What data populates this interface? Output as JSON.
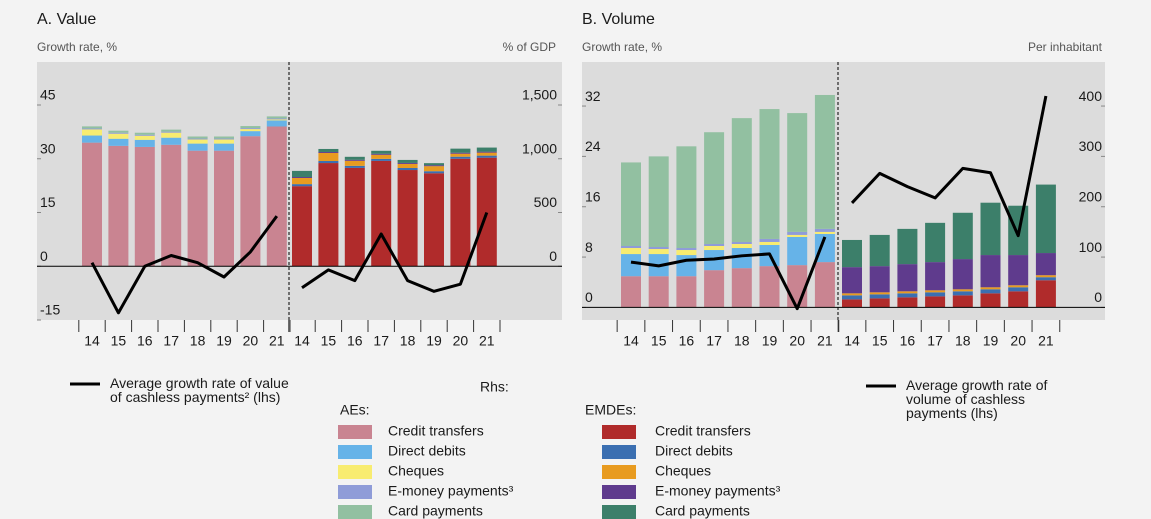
{
  "chart_data": [
    {
      "type": "bar",
      "title": "A. Value",
      "ylabel": "Growth rate, %",
      "y2label": "% of GDP",
      "categories": [
        "14",
        "15",
        "16",
        "17",
        "18",
        "19",
        "20",
        "21"
      ],
      "ylim": [
        -15,
        57
      ],
      "yticks": [
        -15,
        0,
        15,
        30,
        45
      ],
      "y2lim": [
        -500,
        1900
      ],
      "y2ticks": [
        0,
        500,
        {
          "value": 1000,
          "label": "1,000"
        },
        {
          "value": 1500,
          "label": "1,500"
        }
      ],
      "line_name": "Average growth rate of value of cashless payments² (lhs)",
      "line_color": "#000000",
      "groups": [
        {
          "series": [
            {
              "values": [
                1150,
                1120,
                1110,
                1130,
                1075,
                1075,
                1210,
                1300
              ],
              "axis": "y2"
            },
            {
              "values": [
                66,
                66,
                66,
                66,
                66,
                66,
                47,
                57
              ],
              "axis": "y2"
            },
            {
              "values": [
                57,
                47,
                38,
                47,
                38,
                38,
                19,
                9
              ],
              "axis": "y2"
            },
            {
              "values": [
                9,
                9,
                9,
                9,
                9,
                9,
                9,
                9
              ],
              "axis": "y2"
            },
            {
              "values": [
                19,
                19,
                19,
                19,
                19,
                19,
                19,
                19
              ],
              "axis": "y2"
            }
          ],
          "line_values": [
            1,
            -13,
            0,
            3,
            1,
            -3,
            4,
            14
          ]
        },
        {
          "series": [
            {
              "values": [
                745,
                960,
                915,
                980,
                895,
                865,
                1000,
                1010
              ],
              "axis": "y2"
            },
            {
              "values": [
                19,
                19,
                19,
                19,
                19,
                19,
                19,
                19
              ],
              "axis": "y2"
            },
            {
              "values": [
                57,
                75,
                47,
                38,
                38,
                47,
                28,
                28
              ],
              "axis": "y2"
            },
            {
              "values": [
                9,
                9,
                9,
                9,
                9,
                9,
                9,
                9
              ],
              "axis": "y2"
            },
            {
              "values": [
                57,
                28,
                28,
                28,
                28,
                19,
                38,
                38
              ],
              "axis": "y2"
            }
          ],
          "line_values": [
            -6,
            -1,
            -4,
            9,
            -4,
            -7,
            -5,
            15
          ]
        }
      ]
    },
    {
      "type": "bar",
      "title": "B. Volume",
      "ylabel": "Growth rate, %",
      "y2label": "Per inhabitant",
      "categories": [
        "14",
        "15",
        "16",
        "17",
        "18",
        "19",
        "20",
        "21"
      ],
      "ylim": [
        -2,
        39
      ],
      "yticks": [
        0,
        8,
        16,
        24,
        32
      ],
      "y2lim": [
        -25,
        487.5
      ],
      "y2ticks": [
        0,
        100,
        200,
        300,
        400
      ],
      "line_name": "Average growth rate of volume of cashless payments (lhs)",
      "line_color": "#000000",
      "groups": [
        {
          "series": [
            {
              "values": [
                62,
                62,
                62,
                74,
                78,
                82,
                84,
                90
              ],
              "axis": "y2"
            },
            {
              "values": [
                44,
                44,
                42,
                40,
                40,
                42,
                56,
                56
              ],
              "axis": "y2"
            },
            {
              "values": [
                12,
                10,
                10,
                8,
                8,
                6,
                4,
                4
              ],
              "axis": "y2"
            },
            {
              "values": [
                4,
                4,
                4,
                4,
                4,
                6,
                6,
                6
              ],
              "axis": "y2"
            },
            {
              "values": [
                166,
                180,
                202,
                222,
                246,
                258,
                236,
                266
              ],
              "axis": "y2"
            }
          ],
          "line_values": [
            7.2,
            6.6,
            7.5,
            7.7,
            8.2,
            8.5,
            -0.2,
            11.2
          ]
        },
        {
          "series": [
            {
              "values": [
                16,
                18,
                20,
                22,
                24,
                28,
                32,
                54
              ],
              "axis": "y2"
            },
            {
              "values": [
                8,
                8,
                8,
                8,
                8,
                8,
                8,
                6
              ],
              "axis": "y2"
            },
            {
              "values": [
                4,
                4,
                4,
                4,
                4,
                4,
                4,
                4
              ],
              "axis": "y2"
            },
            {
              "values": [
                52,
                52,
                54,
                56,
                60,
                64,
                60,
                44
              ],
              "axis": "y2"
            },
            {
              "values": [
                54,
                62,
                70,
                78,
                92,
                104,
                98,
                136
              ],
              "axis": "y2"
            }
          ],
          "line_values": [
            16.6,
            21.3,
            19.2,
            17.4,
            22.1,
            21.4,
            11.4,
            33.6
          ]
        }
      ]
    }
  ],
  "legend": {
    "rhs_label": "Rhs:",
    "groups": [
      {
        "name": "AEs:",
        "series": [
          {
            "name": "Credit transfers",
            "color": "#c98491"
          },
          {
            "name": "Direct debits",
            "color": "#66b3e8"
          },
          {
            "name": "Cheques",
            "color": "#f8ec70"
          },
          {
            "name": "E-money payments³",
            "color": "#8f9cd8"
          },
          {
            "name": "Card payments",
            "color": "#92c0a1"
          }
        ]
      },
      {
        "name": "EMDEs:",
        "series": [
          {
            "name": "Credit transfers",
            "color": "#b02b2b"
          },
          {
            "name": "Direct debits",
            "color": "#3b6fb1"
          },
          {
            "name": "Cheques",
            "color": "#e89b20"
          },
          {
            "name": "E-money payments³",
            "color": "#5f3b8d"
          },
          {
            "name": "Card payments",
            "color": "#3c7f6a"
          }
        ]
      }
    ]
  }
}
